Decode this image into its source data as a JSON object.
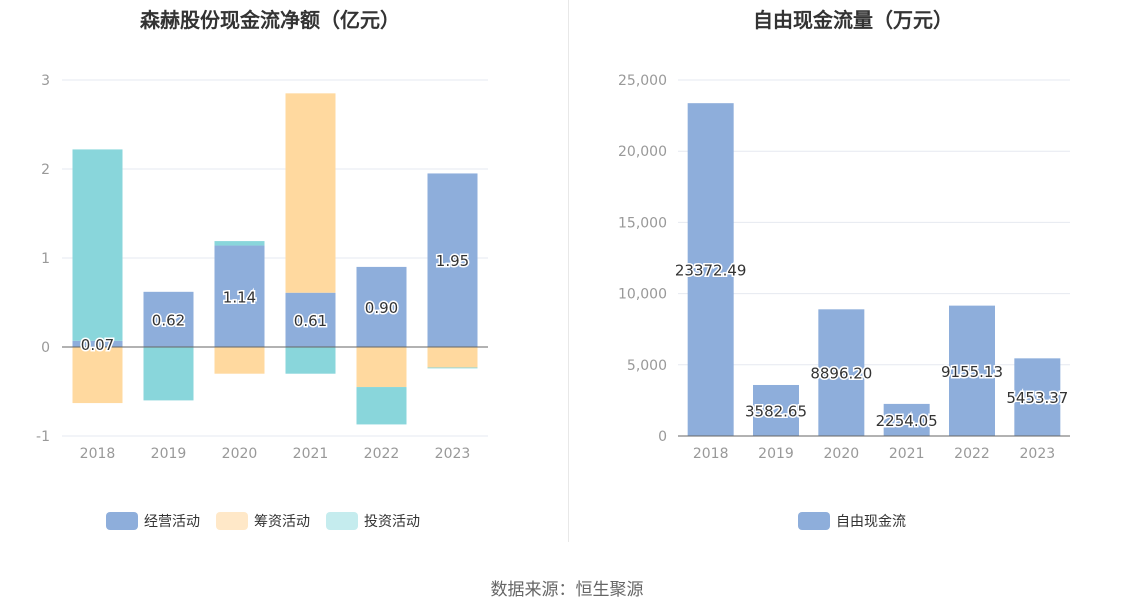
{
  "footer": {
    "source": "数据来源：恒生聚源"
  },
  "colors": {
    "operating": "#8eaedb",
    "financing": "#ffd99f",
    "investing": "#89d6db",
    "fcf": "#8eaedb",
    "axis_text": "#999999",
    "grid": "#e6e9f0",
    "label_text": "#333333"
  },
  "legend_left": [
    {
      "label": "经营活动",
      "color": "#8eaedb"
    },
    {
      "label": "筹资活动",
      "color": "#ffe8c8"
    },
    {
      "label": "投资活动",
      "color": "#c5ecee"
    }
  ],
  "legend_right": [
    {
      "label": "自由现金流",
      "color": "#8eaedb"
    }
  ],
  "chart_data": [
    {
      "type": "bar",
      "stacked": true,
      "title": "森赫股份现金流净额（亿元）",
      "categories": [
        "2018",
        "2019",
        "2020",
        "2021",
        "2022",
        "2023"
      ],
      "ylim": [
        -1,
        3
      ],
      "yticks": [
        -1,
        0,
        1,
        2,
        3
      ],
      "grid": true,
      "legend_position": "bottom",
      "series": [
        {
          "name": "经营活动",
          "values": [
            0.07,
            0.62,
            1.14,
            0.61,
            0.9,
            1.95
          ],
          "labels": [
            "0.07",
            "0.62",
            "1.14",
            "0.61",
            "0.90",
            "1.95"
          ]
        },
        {
          "name": "筹资活动",
          "values": [
            -0.63,
            0,
            -0.3,
            2.24,
            -0.45,
            -0.23
          ]
        },
        {
          "name": "投资活动",
          "values": [
            2.15,
            -0.6,
            0.05,
            -0.3,
            -0.42,
            -0.01
          ]
        }
      ]
    },
    {
      "type": "bar",
      "title": "自由现金流量（万元）",
      "categories": [
        "2018",
        "2019",
        "2020",
        "2021",
        "2022",
        "2023"
      ],
      "ylim": [
        0,
        25000
      ],
      "yticks": [
        0,
        5000,
        10000,
        15000,
        20000,
        25000
      ],
      "ytick_labels": [
        "0",
        "5,000",
        "10,000",
        "15,000",
        "20,000",
        "25,000"
      ],
      "grid": true,
      "legend_position": "bottom",
      "series": [
        {
          "name": "自由现金流",
          "values": [
            23372.49,
            3582.65,
            8896.2,
            2254.05,
            9155.13,
            5453.37
          ],
          "labels": [
            "23372.49",
            "3582.65",
            "8896.20",
            "2254.05",
            "9155.13",
            "5453.37"
          ]
        }
      ]
    }
  ]
}
